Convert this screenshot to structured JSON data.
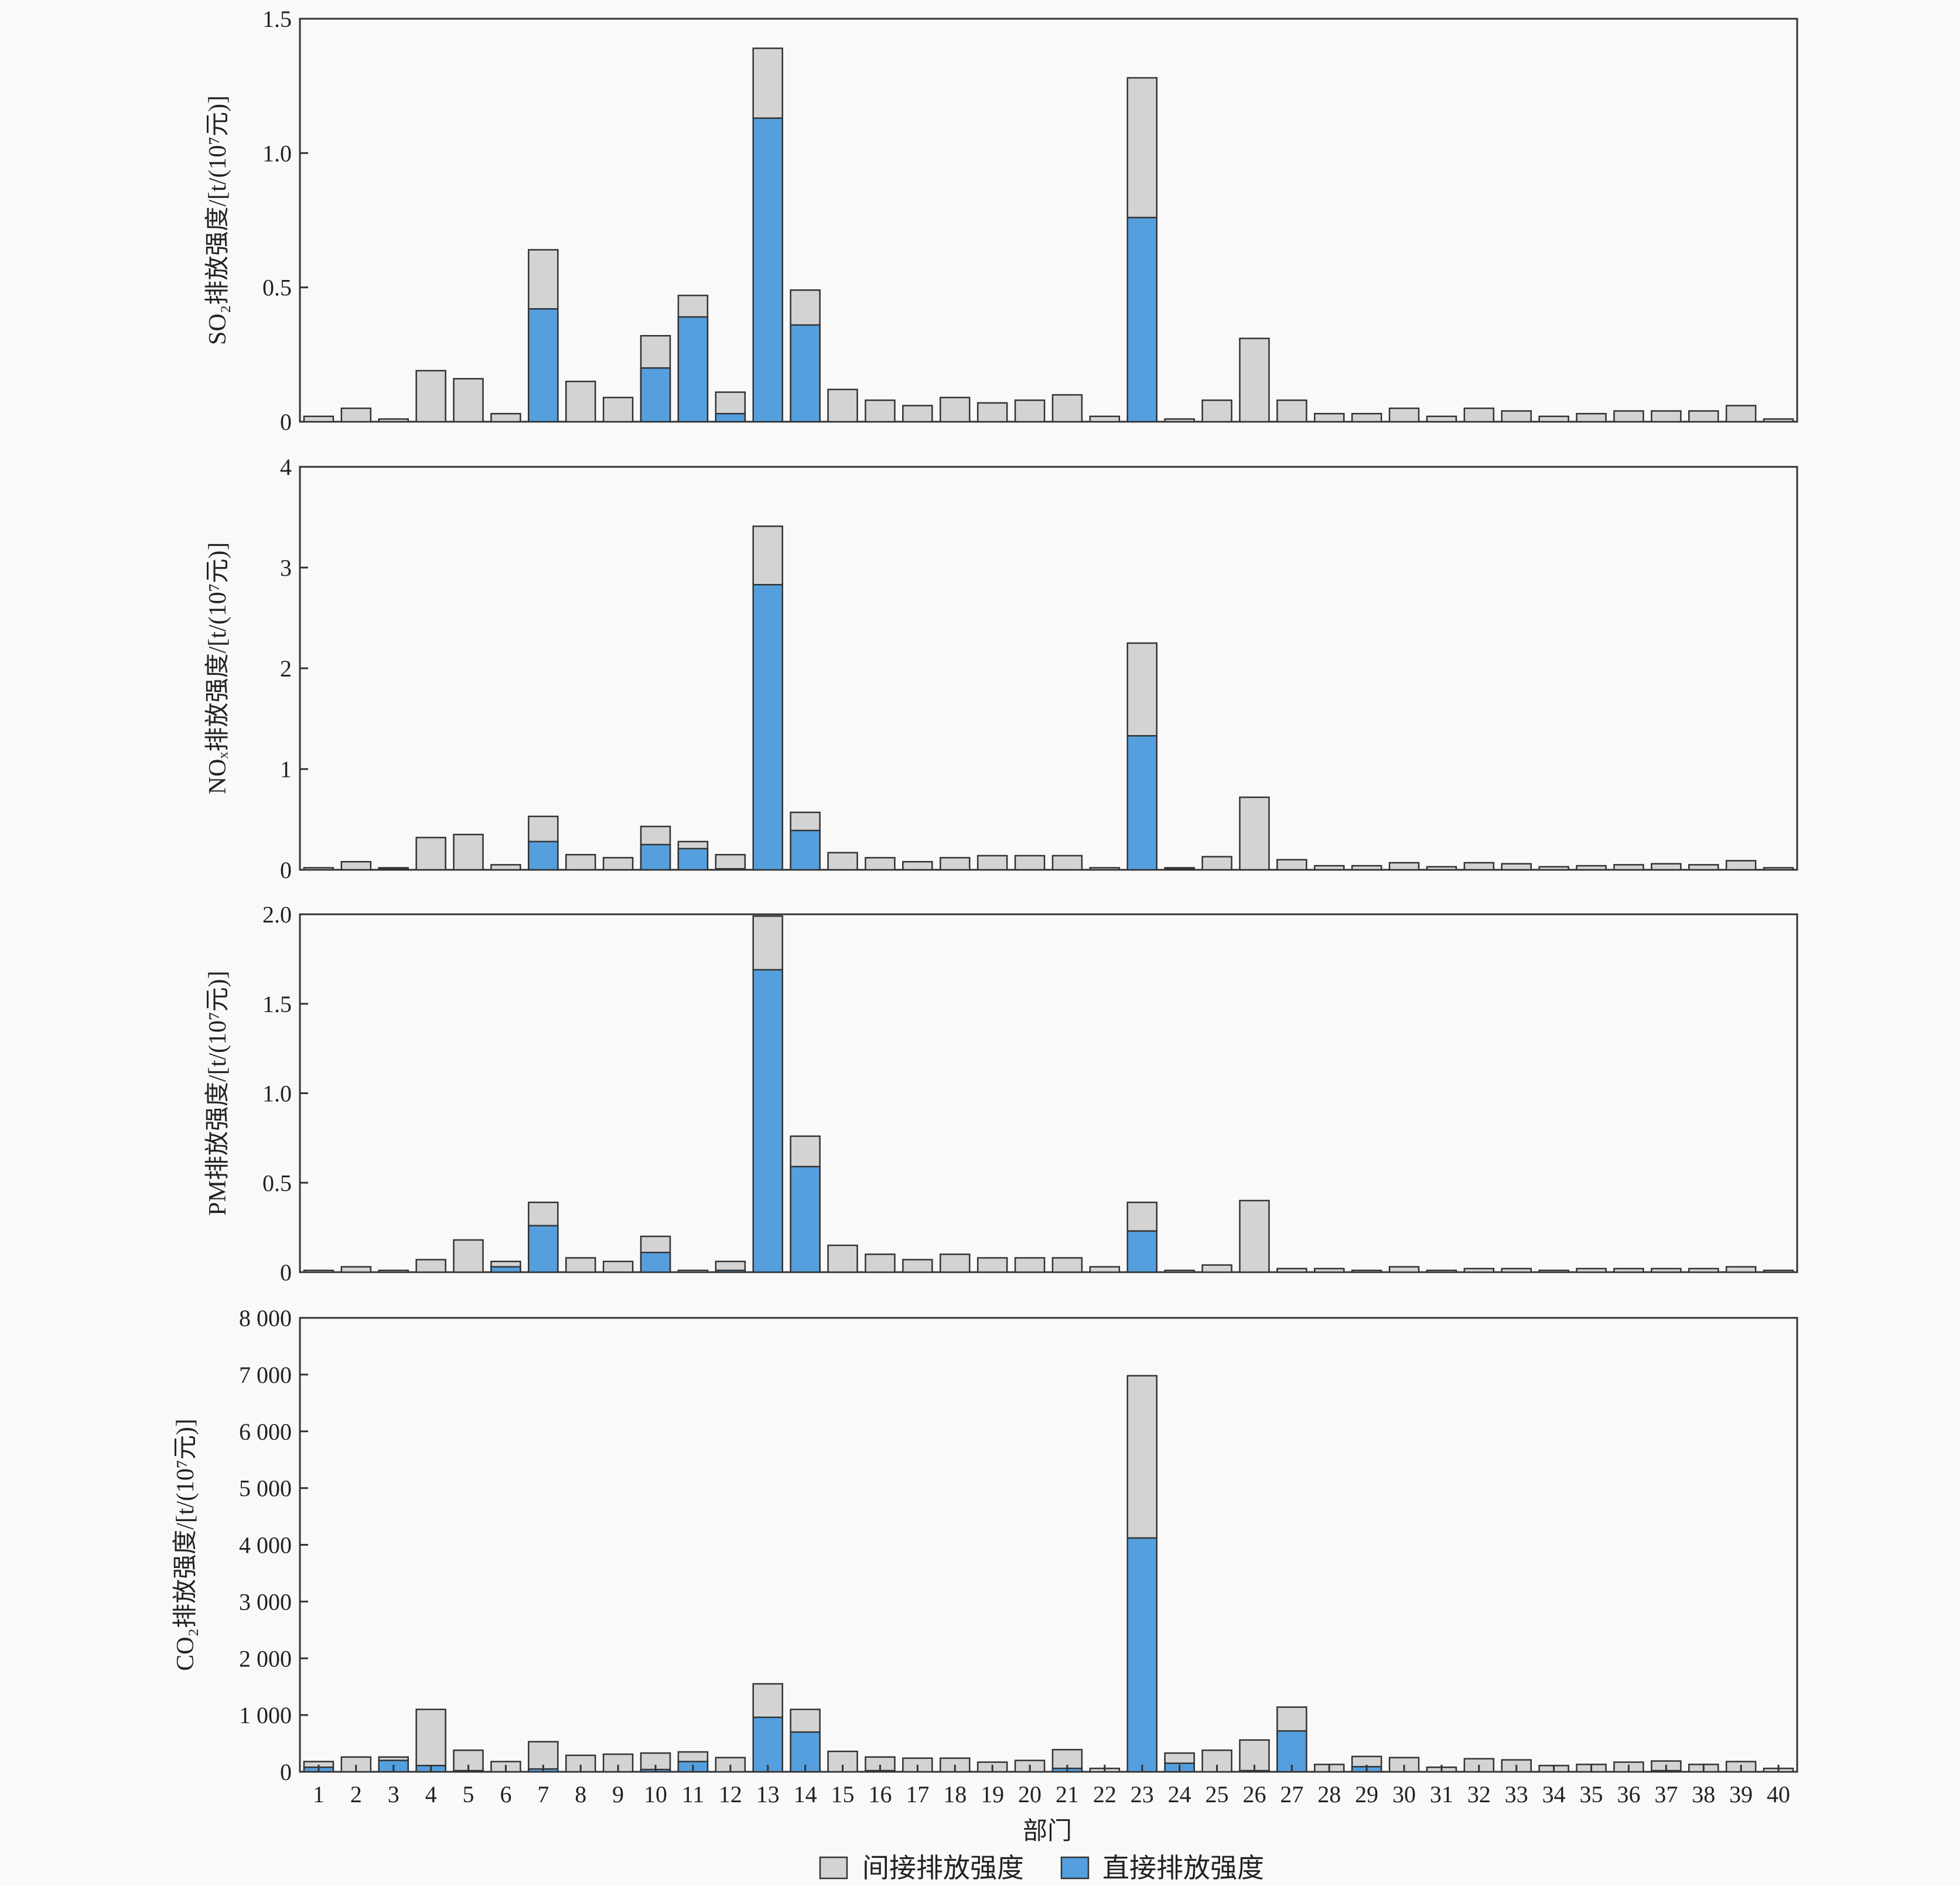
{
  "colors": {
    "indirect": "#d3d3d3",
    "direct": "#559fde",
    "outline": "#333333",
    "background": "#f9f9f9"
  },
  "legend": [
    {
      "key": "indirect",
      "label": "间接排放强度"
    },
    {
      "key": "direct",
      "label": "直接排放强度"
    }
  ],
  "xlabel": "部门",
  "chart_data": [
    {
      "type": "bar",
      "stacked": true,
      "ylabel": "SO₂排放强度/[t/(10⁷元)]",
      "ylim": [
        0,
        1.5
      ],
      "yticks": [
        0,
        0.5,
        1.0,
        1.5
      ],
      "ytick_labels": [
        "0",
        "0.5",
        "1.0",
        "1.5"
      ],
      "categories": [
        "1",
        "2",
        "3",
        "4",
        "5",
        "6",
        "7",
        "8",
        "9",
        "10",
        "11",
        "12",
        "13",
        "14",
        "15",
        "16",
        "17",
        "18",
        "19",
        "20",
        "21",
        "22",
        "23",
        "24",
        "25",
        "26",
        "27",
        "28",
        "29",
        "30",
        "31",
        "32",
        "33",
        "34",
        "35",
        "36",
        "37",
        "38",
        "39",
        "40"
      ],
      "series": [
        {
          "name": "直接排放强度",
          "values": [
            0,
            0,
            0,
            0,
            0,
            0,
            0.42,
            0,
            0,
            0.2,
            0.39,
            0.03,
            1.13,
            0.36,
            0,
            0,
            0,
            0,
            0,
            0,
            0,
            0,
            0.76,
            0,
            0,
            0,
            0,
            0,
            0,
            0,
            0,
            0,
            0,
            0,
            0,
            0,
            0,
            0,
            0,
            0
          ]
        },
        {
          "name": "间接排放强度",
          "values": [
            0.02,
            0.05,
            0.01,
            0.19,
            0.16,
            0.03,
            0.22,
            0.15,
            0.09,
            0.12,
            0.08,
            0.08,
            0.26,
            0.13,
            0.12,
            0.08,
            0.06,
            0.09,
            0.07,
            0.08,
            0.1,
            0.02,
            0.52,
            0.01,
            0.08,
            0.31,
            0.08,
            0.03,
            0.03,
            0.05,
            0.02,
            0.05,
            0.04,
            0.02,
            0.03,
            0.04,
            0.04,
            0.04,
            0.06,
            0.01
          ]
        }
      ]
    },
    {
      "type": "bar",
      "stacked": true,
      "ylabel": "NOₓ排放强度/[t/(10⁷元)]",
      "ylim": [
        0,
        4
      ],
      "yticks": [
        0,
        1,
        2,
        3,
        4
      ],
      "ytick_labels": [
        "0",
        "1",
        "2",
        "3",
        "4"
      ],
      "categories": [
        "1",
        "2",
        "3",
        "4",
        "5",
        "6",
        "7",
        "8",
        "9",
        "10",
        "11",
        "12",
        "13",
        "14",
        "15",
        "16",
        "17",
        "18",
        "19",
        "20",
        "21",
        "22",
        "23",
        "24",
        "25",
        "26",
        "27",
        "28",
        "29",
        "30",
        "31",
        "32",
        "33",
        "34",
        "35",
        "36",
        "37",
        "38",
        "39",
        "40"
      ],
      "series": [
        {
          "name": "直接排放强度",
          "values": [
            0,
            0,
            0.01,
            0,
            0,
            0,
            0.28,
            0,
            0,
            0.25,
            0.21,
            0.01,
            2.83,
            0.39,
            0,
            0,
            0,
            0,
            0,
            0,
            0,
            0,
            1.33,
            0.01,
            0,
            0,
            0,
            0,
            0,
            0,
            0,
            0,
            0,
            0,
            0,
            0,
            0,
            0,
            0,
            0
          ]
        },
        {
          "name": "间接排放强度",
          "values": [
            0.02,
            0.08,
            0.01,
            0.32,
            0.35,
            0.05,
            0.25,
            0.15,
            0.12,
            0.18,
            0.07,
            0.14,
            0.58,
            0.18,
            0.17,
            0.12,
            0.08,
            0.12,
            0.14,
            0.14,
            0.14,
            0.02,
            0.92,
            0.01,
            0.13,
            0.72,
            0.1,
            0.04,
            0.04,
            0.07,
            0.03,
            0.07,
            0.06,
            0.03,
            0.04,
            0.05,
            0.06,
            0.05,
            0.09,
            0.02
          ]
        }
      ]
    },
    {
      "type": "bar",
      "stacked": true,
      "ylabel": "PM排放强度/[t/(10⁷元)]",
      "ylim": [
        0,
        2.0
      ],
      "yticks": [
        0,
        0.5,
        1.0,
        1.5,
        2.0
      ],
      "ytick_labels": [
        "0",
        "0.5",
        "1.0",
        "1.5",
        "2.0"
      ],
      "categories": [
        "1",
        "2",
        "3",
        "4",
        "5",
        "6",
        "7",
        "8",
        "9",
        "10",
        "11",
        "12",
        "13",
        "14",
        "15",
        "16",
        "17",
        "18",
        "19",
        "20",
        "21",
        "22",
        "23",
        "24",
        "25",
        "26",
        "27",
        "28",
        "29",
        "30",
        "31",
        "32",
        "33",
        "34",
        "35",
        "36",
        "37",
        "38",
        "39",
        "40"
      ],
      "series": [
        {
          "name": "直接排放强度",
          "values": [
            0,
            0,
            0,
            0,
            0,
            0.03,
            0.26,
            0,
            0,
            0.11,
            0,
            0.01,
            1.69,
            0.59,
            0,
            0,
            0,
            0,
            0,
            0,
            0,
            0,
            0.23,
            0,
            0,
            0,
            0,
            0,
            0,
            0,
            0,
            0,
            0,
            0,
            0,
            0,
            0,
            0,
            0,
            0
          ]
        },
        {
          "name": "间接排放强度",
          "values": [
            0.01,
            0.03,
            0.01,
            0.07,
            0.18,
            0.03,
            0.13,
            0.08,
            0.06,
            0.09,
            0.01,
            0.05,
            0.3,
            0.17,
            0.15,
            0.1,
            0.07,
            0.1,
            0.08,
            0.08,
            0.08,
            0.03,
            0.16,
            0.01,
            0.04,
            0.4,
            0.02,
            0.02,
            0.01,
            0.03,
            0.01,
            0.02,
            0.02,
            0.01,
            0.02,
            0.02,
            0.02,
            0.02,
            0.03,
            0.01
          ]
        }
      ]
    },
    {
      "type": "bar",
      "stacked": true,
      "ylabel": "CO₂排放强度/[t/(10⁷元)]",
      "ylim": [
        0,
        8000
      ],
      "yticks": [
        0,
        1000,
        2000,
        3000,
        4000,
        5000,
        6000,
        7000,
        8000
      ],
      "ytick_labels": [
        "0",
        "1 000",
        "2 000",
        "3 000",
        "4 000",
        "5 000",
        "6 000",
        "7 000",
        "8 000"
      ],
      "categories": [
        "1",
        "2",
        "3",
        "4",
        "5",
        "6",
        "7",
        "8",
        "9",
        "10",
        "11",
        "12",
        "13",
        "14",
        "15",
        "16",
        "17",
        "18",
        "19",
        "20",
        "21",
        "22",
        "23",
        "24",
        "25",
        "26",
        "27",
        "28",
        "29",
        "30",
        "31",
        "32",
        "33",
        "34",
        "35",
        "36",
        "37",
        "38",
        "39",
        "40"
      ],
      "series": [
        {
          "name": "直接排放强度",
          "values": [
            80,
            0,
            200,
            110,
            20,
            0,
            50,
            0,
            0,
            40,
            180,
            0,
            960,
            700,
            0,
            20,
            0,
            0,
            0,
            0,
            60,
            0,
            4120,
            150,
            0,
            20,
            720,
            0,
            90,
            0,
            0,
            0,
            0,
            0,
            0,
            0,
            20,
            0,
            0,
            0
          ]
        },
        {
          "name": "间接排放强度",
          "values": [
            100,
            260,
            60,
            990,
            360,
            180,
            480,
            290,
            310,
            290,
            170,
            250,
            590,
            400,
            360,
            240,
            240,
            240,
            170,
            200,
            330,
            60,
            2860,
            180,
            380,
            540,
            420,
            130,
            180,
            250,
            80,
            230,
            210,
            110,
            130,
            170,
            170,
            130,
            180,
            60
          ]
        }
      ]
    }
  ]
}
